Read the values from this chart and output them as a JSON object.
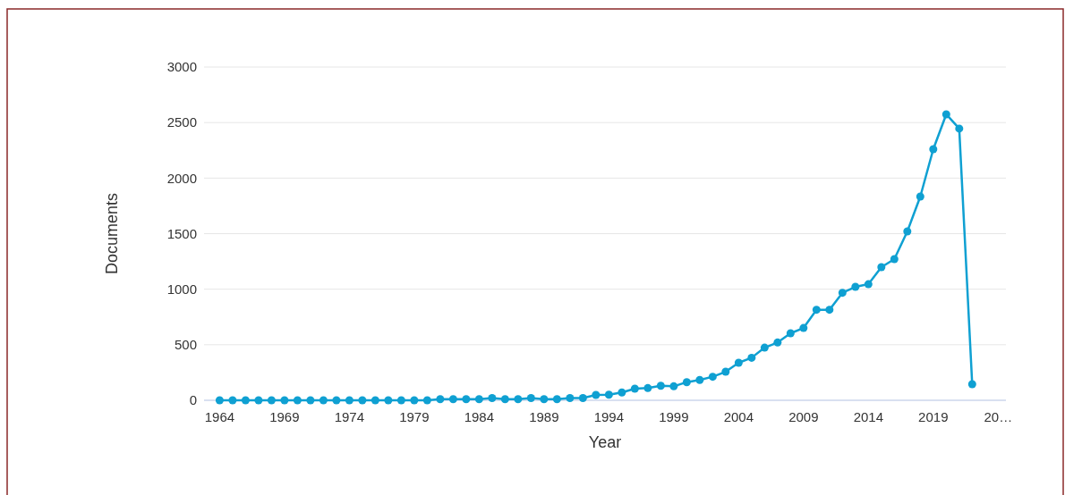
{
  "chart_data": {
    "type": "line",
    "xlabel": "Year",
    "ylabel": "Documents",
    "x": [
      1964,
      1965,
      1966,
      1967,
      1968,
      1969,
      1970,
      1971,
      1972,
      1973,
      1974,
      1975,
      1976,
      1977,
      1978,
      1979,
      1980,
      1981,
      1982,
      1983,
      1984,
      1985,
      1986,
      1987,
      1988,
      1989,
      1990,
      1991,
      1992,
      1993,
      1994,
      1995,
      1996,
      1997,
      1998,
      1999,
      2000,
      2001,
      2002,
      2003,
      2004,
      2005,
      2006,
      2007,
      2008,
      2009,
      2010,
      2011,
      2012,
      2013,
      2014,
      2015,
      2016,
      2017,
      2018,
      2019,
      2020,
      2021,
      2022
    ],
    "series": [
      {
        "color": "#0fa0d2",
        "values": [
          0,
          0,
          0,
          0,
          0,
          0,
          0,
          0,
          0,
          0,
          0,
          0,
          0,
          0,
          0,
          0,
          0,
          10,
          10,
          10,
          10,
          20,
          10,
          10,
          20,
          10,
          10,
          20,
          20,
          48,
          50,
          70,
          105,
          110,
          131,
          126,
          163,
          183,
          212,
          257,
          338,
          383,
          474,
          520,
          603,
          651,
          815,
          815,
          968,
          1021,
          1045,
          1198,
          1271,
          1520,
          1834,
          2260,
          2574,
          2446,
          145
        ]
      }
    ],
    "xlim": [
      1962.8,
      2024.6
    ],
    "xticks": [
      1964,
      1969,
      1974,
      1979,
      1984,
      1989,
      1994,
      1999,
      2004,
      2009,
      2014,
      2019,
      {
        "value": 2024,
        "label": "20…"
      }
    ],
    "ylim": [
      0,
      3000
    ],
    "yticks": [
      0,
      500,
      1000,
      1500,
      2000,
      2500,
      3000
    ],
    "grid": "y",
    "marker": "circle",
    "line_style": "solid"
  }
}
